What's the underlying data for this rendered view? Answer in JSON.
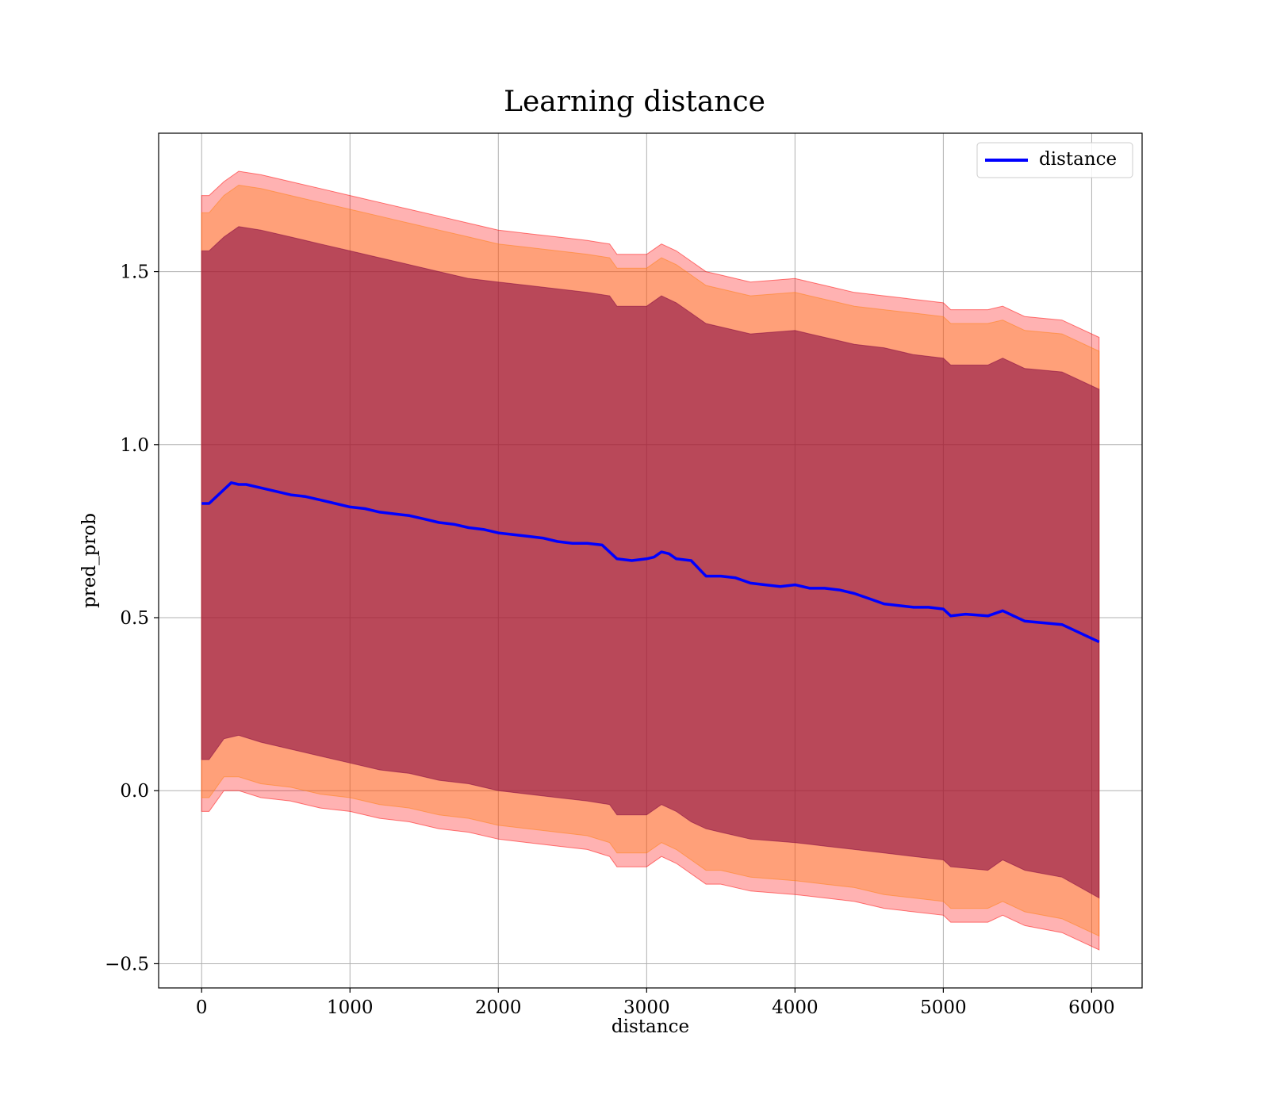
{
  "chart_data": {
    "type": "line",
    "title": "Learning distance",
    "xlabel": "distance",
    "ylabel": "pred_prob",
    "xlim": [
      -290,
      6340
    ],
    "ylim": [
      -0.57,
      1.9
    ],
    "x_ticks": [
      0,
      1000,
      2000,
      3000,
      4000,
      5000,
      6000
    ],
    "x_tick_labels": [
      "0",
      "1000",
      "2000",
      "3000",
      "4000",
      "5000",
      "6000"
    ],
    "y_ticks": [
      -0.5,
      0.0,
      0.5,
      1.0,
      1.5
    ],
    "y_tick_labels": [
      "−0.5",
      "0.0",
      "0.5",
      "1.0",
      "1.5"
    ],
    "grid": true,
    "legend_position": "top-right",
    "colors": {
      "line": "#0000ff",
      "band_outer": "#ff0000",
      "band_middle": "#ff7f0e",
      "band_inner": "#800040",
      "grid": "#b0b0b0"
    },
    "series": [
      {
        "name": "distance",
        "x": [
          0,
          50,
          100,
          150,
          200,
          250,
          300,
          400,
          500,
          600,
          700,
          800,
          900,
          1000,
          1100,
          1200,
          1300,
          1400,
          1500,
          1600,
          1700,
          1800,
          1900,
          2000,
          2100,
          2200,
          2300,
          2400,
          2500,
          2600,
          2700,
          2800,
          2900,
          3000,
          3050,
          3100,
          3150,
          3200,
          3300,
          3400,
          3500,
          3600,
          3700,
          3800,
          3900,
          4000,
          4100,
          4200,
          4300,
          4400,
          4500,
          4600,
          4700,
          4800,
          4900,
          5000,
          5050,
          5150,
          5300,
          5400,
          5550,
          5800,
          6050
        ],
        "values": [
          0.83,
          0.83,
          0.85,
          0.87,
          0.89,
          0.885,
          0.885,
          0.875,
          0.865,
          0.855,
          0.85,
          0.84,
          0.83,
          0.82,
          0.815,
          0.805,
          0.8,
          0.795,
          0.785,
          0.775,
          0.77,
          0.76,
          0.755,
          0.745,
          0.74,
          0.735,
          0.73,
          0.72,
          0.715,
          0.715,
          0.71,
          0.67,
          0.665,
          0.67,
          0.675,
          0.69,
          0.685,
          0.67,
          0.665,
          0.62,
          0.62,
          0.615,
          0.6,
          0.595,
          0.59,
          0.595,
          0.585,
          0.585,
          0.58,
          0.57,
          0.555,
          0.54,
          0.535,
          0.53,
          0.53,
          0.525,
          0.505,
          0.51,
          0.505,
          0.52,
          0.49,
          0.48,
          0.43
        ]
      }
    ],
    "bands": [
      {
        "color": "#ff0000",
        "opacity": 0.3,
        "x": [
          0,
          50,
          150,
          250,
          400,
          600,
          800,
          1000,
          1200,
          1400,
          1600,
          1800,
          2000,
          2200,
          2400,
          2600,
          2750,
          2800,
          3000,
          3100,
          3200,
          3300,
          3400,
          3500,
          3700,
          4000,
          4200,
          4400,
          4600,
          4800,
          5000,
          5050,
          5300,
          5400,
          5550,
          5800,
          6050
        ],
        "upper": [
          1.72,
          1.72,
          1.76,
          1.79,
          1.78,
          1.76,
          1.74,
          1.72,
          1.7,
          1.68,
          1.66,
          1.64,
          1.62,
          1.61,
          1.6,
          1.59,
          1.58,
          1.55,
          1.55,
          1.58,
          1.56,
          1.53,
          1.5,
          1.49,
          1.47,
          1.48,
          1.46,
          1.44,
          1.43,
          1.42,
          1.41,
          1.39,
          1.39,
          1.4,
          1.37,
          1.36,
          1.31
        ],
        "lower": [
          -0.06,
          -0.06,
          0.0,
          0.0,
          -0.02,
          -0.03,
          -0.05,
          -0.06,
          -0.08,
          -0.09,
          -0.11,
          -0.12,
          -0.14,
          -0.15,
          -0.16,
          -0.17,
          -0.19,
          -0.22,
          -0.22,
          -0.19,
          -0.21,
          -0.24,
          -0.27,
          -0.27,
          -0.29,
          -0.3,
          -0.31,
          -0.32,
          -0.34,
          -0.35,
          -0.36,
          -0.38,
          -0.38,
          -0.36,
          -0.39,
          -0.41,
          -0.46
        ]
      },
      {
        "color": "#ff7f0e",
        "opacity": 0.35,
        "x": [
          0,
          50,
          150,
          250,
          400,
          600,
          800,
          1000,
          1200,
          1400,
          1600,
          1800,
          2000,
          2200,
          2400,
          2600,
          2750,
          2800,
          3000,
          3100,
          3200,
          3300,
          3400,
          3500,
          3700,
          4000,
          4200,
          4400,
          4600,
          4800,
          5000,
          5050,
          5300,
          5400,
          5550,
          5800,
          6050
        ],
        "upper": [
          1.67,
          1.67,
          1.72,
          1.75,
          1.74,
          1.72,
          1.7,
          1.68,
          1.66,
          1.64,
          1.62,
          1.6,
          1.58,
          1.57,
          1.56,
          1.55,
          1.54,
          1.51,
          1.51,
          1.54,
          1.52,
          1.49,
          1.46,
          1.45,
          1.43,
          1.44,
          1.42,
          1.4,
          1.39,
          1.38,
          1.37,
          1.35,
          1.35,
          1.36,
          1.33,
          1.32,
          1.27
        ],
        "lower": [
          -0.02,
          -0.02,
          0.04,
          0.04,
          0.02,
          0.01,
          -0.01,
          -0.02,
          -0.04,
          -0.05,
          -0.07,
          -0.08,
          -0.1,
          -0.11,
          -0.12,
          -0.13,
          -0.15,
          -0.18,
          -0.18,
          -0.15,
          -0.17,
          -0.2,
          -0.23,
          -0.23,
          -0.25,
          -0.26,
          -0.27,
          -0.28,
          -0.3,
          -0.31,
          -0.32,
          -0.34,
          -0.34,
          -0.32,
          -0.35,
          -0.37,
          -0.42
        ]
      },
      {
        "color": "#800040",
        "opacity": 0.55,
        "x": [
          0,
          50,
          150,
          250,
          400,
          600,
          800,
          1000,
          1200,
          1400,
          1600,
          1800,
          2000,
          2200,
          2400,
          2600,
          2750,
          2800,
          3000,
          3100,
          3200,
          3300,
          3400,
          3500,
          3700,
          4000,
          4200,
          4400,
          4600,
          4800,
          5000,
          5050,
          5300,
          5400,
          5550,
          5800,
          6050
        ],
        "upper": [
          1.56,
          1.56,
          1.6,
          1.63,
          1.62,
          1.6,
          1.58,
          1.56,
          1.54,
          1.52,
          1.5,
          1.48,
          1.47,
          1.46,
          1.45,
          1.44,
          1.43,
          1.4,
          1.4,
          1.43,
          1.41,
          1.38,
          1.35,
          1.34,
          1.32,
          1.33,
          1.31,
          1.29,
          1.28,
          1.26,
          1.25,
          1.23,
          1.23,
          1.25,
          1.22,
          1.21,
          1.16
        ],
        "lower": [
          0.09,
          0.09,
          0.15,
          0.16,
          0.14,
          0.12,
          0.1,
          0.08,
          0.06,
          0.05,
          0.03,
          0.02,
          0.0,
          -0.01,
          -0.02,
          -0.03,
          -0.04,
          -0.07,
          -0.07,
          -0.04,
          -0.06,
          -0.09,
          -0.11,
          -0.12,
          -0.14,
          -0.15,
          -0.16,
          -0.17,
          -0.18,
          -0.19,
          -0.2,
          -0.22,
          -0.23,
          -0.2,
          -0.23,
          -0.25,
          -0.31
        ]
      }
    ]
  }
}
